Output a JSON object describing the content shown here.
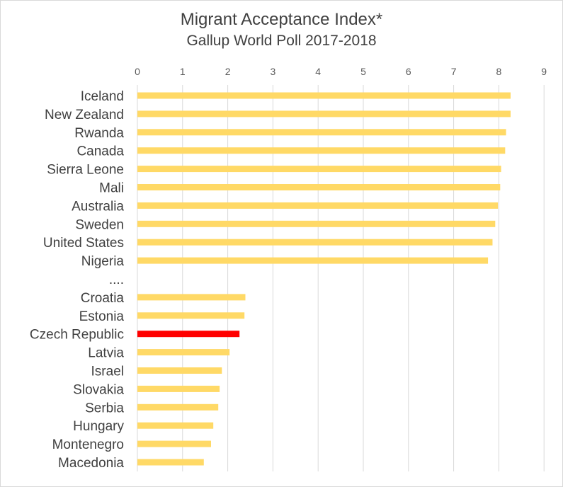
{
  "chart_data": {
    "type": "bar",
    "orientation": "horizontal",
    "title": "Migrant Acceptance Index*",
    "subtitle": "Gallup World Poll 2017-2018",
    "xlim": [
      0,
      9
    ],
    "x_ticks": [
      "0",
      "1",
      "2",
      "3",
      "4",
      "5",
      "6",
      "7",
      "8",
      "9"
    ],
    "x_axis_position": "top",
    "grid": "vertical",
    "categories": [
      "Iceland",
      "New Zealand",
      "Rwanda",
      "Canada",
      "Sierra Leone",
      "Mali",
      "Australia",
      "Sweden",
      "United States",
      "Nigeria",
      "....",
      "Croatia",
      "Estonia",
      "Czech Republic",
      "Latvia",
      "Israel",
      "Slovakia",
      "Serbia",
      "Hungary",
      "Montenegro",
      "Macedonia"
    ],
    "values": [
      8.26,
      8.26,
      8.16,
      8.14,
      8.05,
      8.03,
      7.98,
      7.92,
      7.86,
      7.76,
      null,
      2.39,
      2.37,
      2.26,
      2.04,
      1.87,
      1.82,
      1.79,
      1.68,
      1.63,
      1.47
    ],
    "colors": {
      "bar": "#ffd966",
      "highlight": "#ff0000",
      "grid": "#d9d9d9",
      "text": "#404040"
    },
    "highlight_category": "Czech Republic"
  }
}
